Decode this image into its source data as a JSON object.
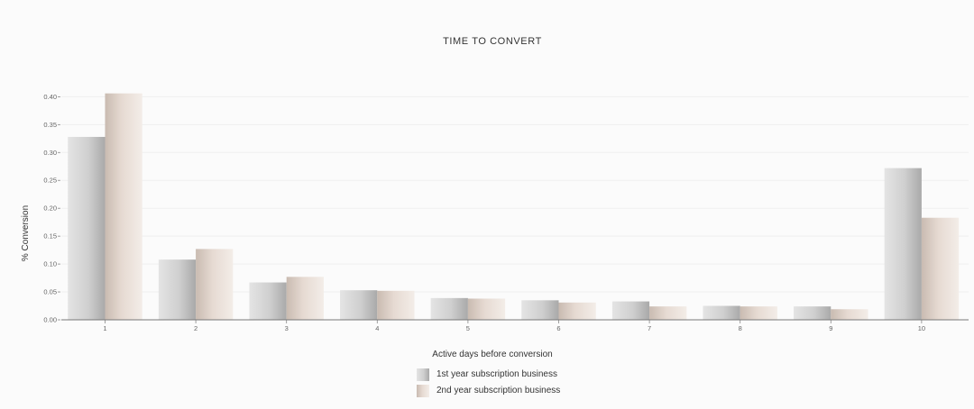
{
  "chart_data": {
    "type": "bar",
    "title": "TIME TO CONVERT",
    "xlabel": "Active days before conversion",
    "ylabel": "% Conversion",
    "ylim": [
      0,
      0.42
    ],
    "yticks": [
      "0.00",
      "0.05",
      "0.10",
      "0.15",
      "0.20",
      "0.25",
      "0.30",
      "0.35",
      "0.40"
    ],
    "categories": [
      "1",
      "2",
      "3",
      "4",
      "5",
      "6",
      "7",
      "8",
      "9",
      "10"
    ],
    "grid": true,
    "legend_position": "bottom-center",
    "series": [
      {
        "name": "1st year subscription business",
        "color": "#c9c9c9",
        "values": [
          0.328,
          0.108,
          0.067,
          0.053,
          0.039,
          0.035,
          0.033,
          0.025,
          0.024,
          0.272
        ]
      },
      {
        "name": "2nd year subscription business",
        "color": "#e8ddd6",
        "values": [
          0.406,
          0.127,
          0.077,
          0.052,
          0.038,
          0.031,
          0.024,
          0.024,
          0.019,
          0.183
        ]
      }
    ]
  }
}
